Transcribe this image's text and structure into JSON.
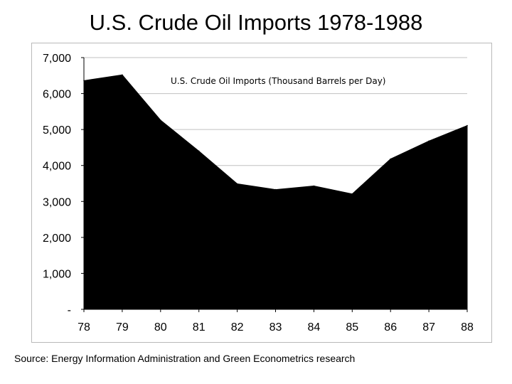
{
  "slide": {
    "title": "U.S. Crude Oil Imports 1978-1988",
    "source": "Source: Energy Information Administration and Green Econometrics research"
  },
  "chart_data": {
    "type": "area",
    "title": "U.S. Crude Oil Imports 1978-1988",
    "series_label": "U.S. Crude Oil Imports (Thousand Barrels per Day)",
    "xlabel": "",
    "ylabel": "",
    "categories": [
      "78",
      "79",
      "80",
      "81",
      "82",
      "83",
      "84",
      "85",
      "86",
      "87",
      "88"
    ],
    "series": [
      {
        "name": "U.S. Crude Oil Imports (Thousand Barrels per Day)",
        "values": [
          6360,
          6520,
          5260,
          4400,
          3490,
          3330,
          3430,
          3210,
          4180,
          4680,
          5110
        ],
        "color": "#000000"
      }
    ],
    "y_ticks": [
      0,
      1000,
      2000,
      3000,
      4000,
      5000,
      6000,
      7000
    ],
    "y_tick_labels": [
      "-",
      "1,000",
      "2,000",
      "3,000",
      "4,000",
      "5,000",
      "6,000",
      "7,000"
    ],
    "ylim": [
      0,
      7000
    ],
    "grid": true,
    "gridline_color": "#c0c0c0"
  }
}
